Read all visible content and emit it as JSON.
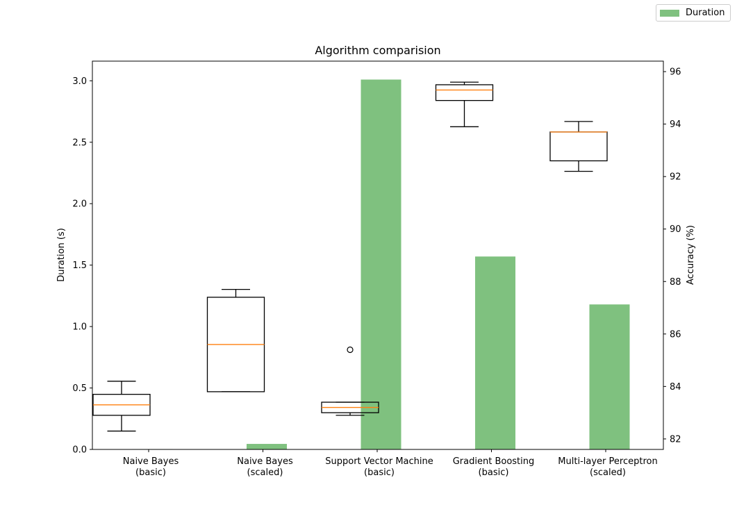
{
  "chart_data": {
    "type": "bar",
    "title": "Algorithm comparision",
    "categories": [
      [
        "Naive Bayes",
        "(basic)"
      ],
      [
        "Naive Bayes",
        "(scaled)"
      ],
      [
        "Support Vector Machine",
        "(basic)"
      ],
      [
        "Gradient Boosting",
        "(basic)"
      ],
      [
        "Multi-layer Perceptron",
        "(scaled)"
      ]
    ],
    "left_axis": {
      "label": "Duration (s)",
      "ylim": [
        0,
        3.16
      ],
      "ticks": [
        "0.0",
        "0.5",
        "1.0",
        "1.5",
        "2.0",
        "2.5",
        "3.0"
      ],
      "tick_values": [
        0,
        0.5,
        1.0,
        1.5,
        2.0,
        2.5,
        3.0
      ]
    },
    "right_axis": {
      "label": "Accuracy (%)",
      "ylim": [
        81.6,
        96.4
      ],
      "ticks": [
        "82",
        "84",
        "86",
        "88",
        "90",
        "92",
        "94",
        "96"
      ],
      "tick_values": [
        82,
        84,
        86,
        88,
        90,
        92,
        94,
        96
      ]
    },
    "series": [
      {
        "name": "Duration",
        "kind": "bar",
        "axis": "left",
        "color": "#7fc17f",
        "values": [
          0.003,
          0.045,
          3.01,
          1.57,
          1.18
        ]
      },
      {
        "kind": "box",
        "axis": "right",
        "box_color": "#000000",
        "median_color": "#ff7f0e",
        "boxes": [
          {
            "whislo": 82.3,
            "q1": 82.9,
            "med": 83.3,
            "q3": 83.7,
            "whishi": 84.2,
            "fliers": []
          },
          {
            "whislo": 83.8,
            "q1": 83.8,
            "med": 85.6,
            "q3": 87.4,
            "whishi": 87.7,
            "fliers": []
          },
          {
            "whislo": 82.9,
            "q1": 83.0,
            "med": 83.2,
            "q3": 83.4,
            "whishi": 83.4,
            "fliers": [
              85.4
            ]
          },
          {
            "whislo": 93.9,
            "q1": 94.9,
            "med": 95.3,
            "q3": 95.5,
            "whishi": 95.6,
            "fliers": []
          },
          {
            "whislo": 92.2,
            "q1": 92.6,
            "med": 93.7,
            "q3": 93.7,
            "whishi": 94.1,
            "fliers": []
          }
        ]
      }
    ],
    "legend": {
      "position": "top-right",
      "entries": [
        "Duration"
      ]
    }
  }
}
